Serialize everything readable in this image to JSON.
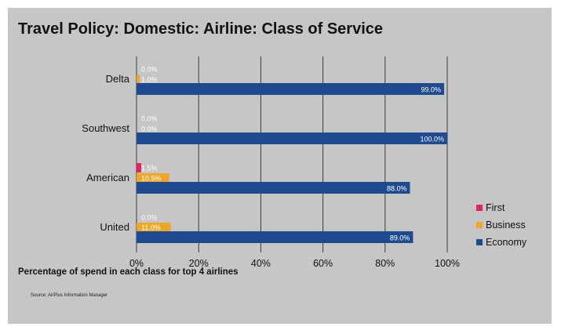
{
  "header": {
    "title": "Travel Policy: Domestic: Airline: Class of Service",
    "subtitle": "Percentage of spend in each class for top 4 airlines",
    "source": "Source: AirPlus Information Manager"
  },
  "chart_data": {
    "type": "bar",
    "orientation": "horizontal",
    "categories": [
      "Delta",
      "Southwest",
      "American",
      "United"
    ],
    "series": [
      {
        "name": "First",
        "color": "#e0245e",
        "values": [
          0.0,
          0.0,
          1.5,
          0.0
        ],
        "labels": [
          "0.0%",
          "0.0%",
          "1.5%",
          "0.0%"
        ]
      },
      {
        "name": "Business",
        "color": "#f0a626",
        "values": [
          1.0,
          0.0,
          10.5,
          11.0
        ],
        "labels": [
          "1.0%",
          "0.0%",
          "10.5%",
          "11.0%"
        ]
      },
      {
        "name": "Economy",
        "color": "#1e4b8f",
        "values": [
          99.0,
          100.0,
          88.0,
          89.0
        ],
        "labels": [
          "99.0%",
          "100.0%",
          "88.0%",
          "89.0%"
        ]
      }
    ],
    "x_ticks": [
      "0%",
      "20%",
      "40%",
      "60%",
      "80%",
      "100%"
    ],
    "xlim": [
      0,
      100
    ],
    "grid": true,
    "legend_position": "right"
  }
}
